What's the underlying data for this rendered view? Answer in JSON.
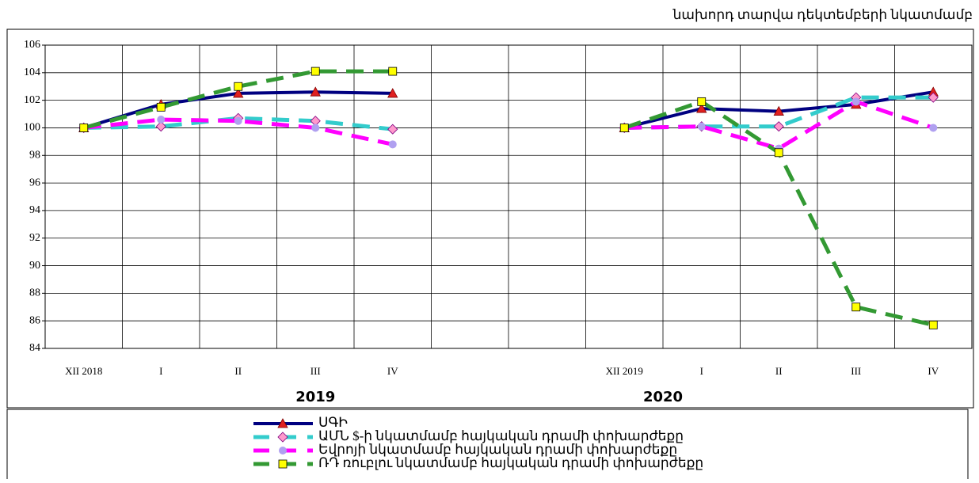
{
  "chart_data": {
    "type": "line",
    "subtitle": "նախորդ տարվա դեկտեմբերի նկատմամբ",
    "categories": [
      "XII 2018",
      "I",
      "II",
      "III",
      "IV",
      null,
      null,
      "XII 2019",
      "I",
      "II",
      "III",
      "IV"
    ],
    "groups": [
      "2019",
      "2020"
    ],
    "ylim": [
      84,
      106
    ],
    "yticks": [
      84,
      86,
      88,
      90,
      92,
      94,
      96,
      98,
      100,
      102,
      104,
      106
    ],
    "grid": true,
    "series": [
      {
        "name": "ՍԳԻ",
        "color": "#000080",
        "style": "solid",
        "marker": "triangle",
        "marker_color": "#e02020",
        "values": [
          100,
          101.7,
          102.5,
          102.6,
          102.5,
          null,
          null,
          100,
          101.4,
          101.2,
          101.7,
          102.6
        ]
      },
      {
        "name": "ԱՄՆ $-ի նկատմամբ հայկական դրամի փոխարժեքը",
        "color": "#33cccc",
        "style": "dashed",
        "marker": "diamond",
        "marker_color": "#ff99cc",
        "values": [
          100,
          100.1,
          100.7,
          100.5,
          99.9,
          null,
          null,
          100,
          100.1,
          100.1,
          102.2,
          102.2
        ]
      },
      {
        "name": "Եվրոյի նկատմամբ հայկական դրամի փոխարժեքը",
        "color": "#ff00ff",
        "style": "dashed",
        "marker": "circle",
        "marker_color": "#b0a0f0",
        "values": [
          100,
          100.6,
          100.5,
          100,
          98.8,
          null,
          null,
          100,
          100.1,
          98.5,
          101.9,
          100
        ]
      },
      {
        "name": "ՌԴ ռուբլու նկատմամբ հայկական դրամի  փոխարժեքը",
        "color": "#339933",
        "style": "dashed",
        "marker": "square",
        "marker_color": "#ffff00",
        "values": [
          100,
          101.5,
          103,
          104.1,
          104.1,
          null,
          null,
          100,
          101.9,
          98.2,
          87,
          85.7
        ]
      }
    ]
  }
}
